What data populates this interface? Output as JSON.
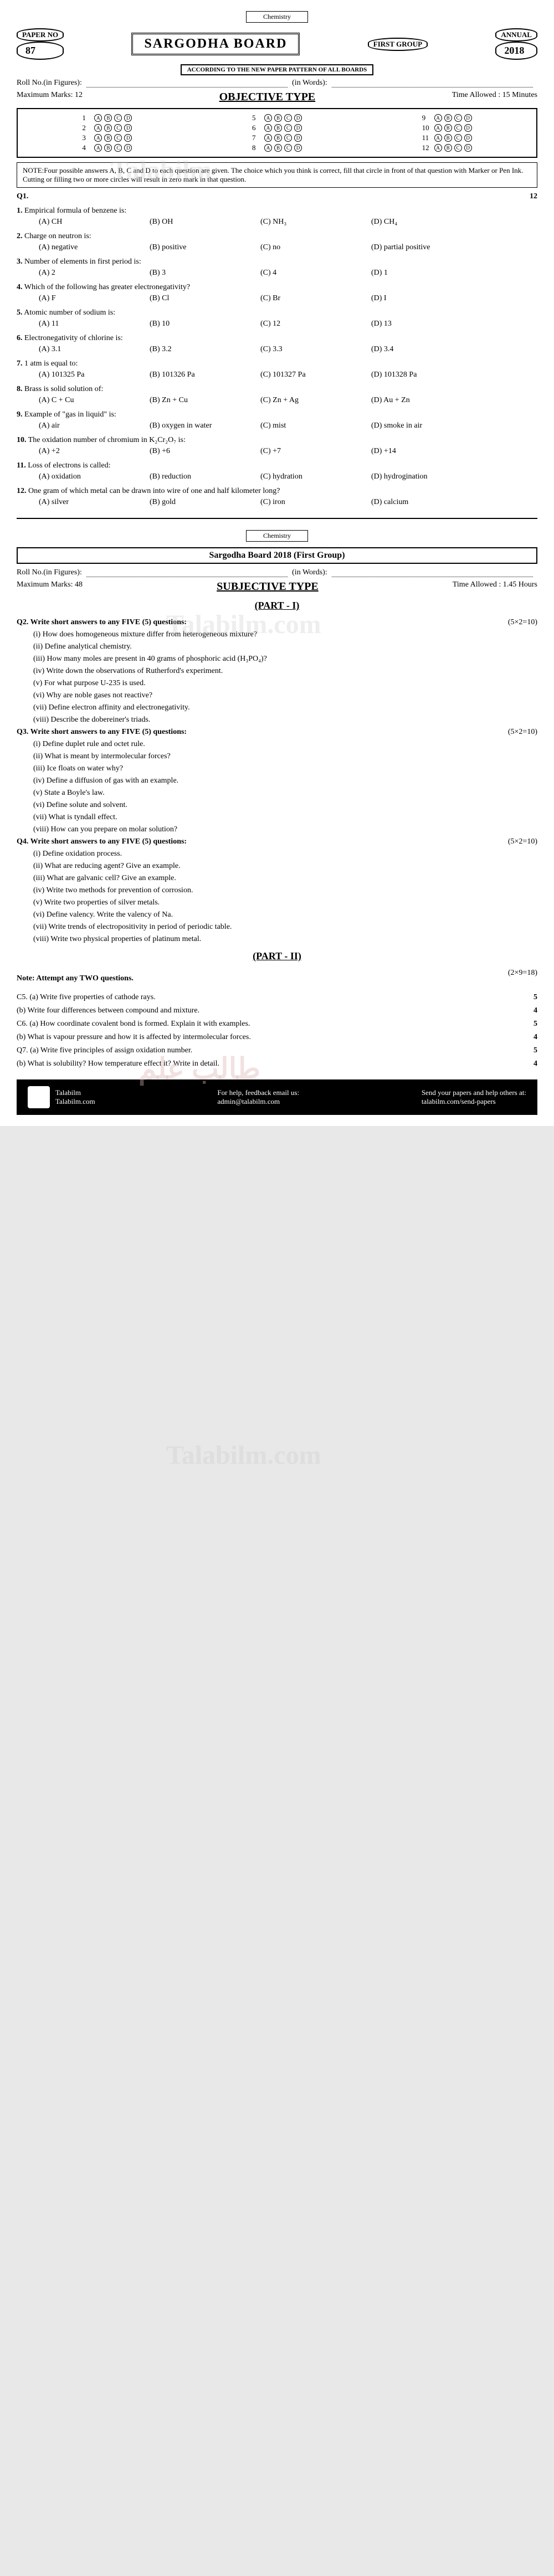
{
  "top_label": "Chemistry",
  "header": {
    "paper_no_label": "PAPER NO",
    "paper_no": "87",
    "board": "SARGODHA BOARD",
    "group": "FIRST GROUP",
    "annual": "ANNUAL",
    "year": "2018",
    "pattern": "ACCORDING TO THE NEW PAPER PATTERN OF ALL BOARDS"
  },
  "obj": {
    "roll_fig": "Roll No.(in Figures):",
    "roll_words": "(in Words):",
    "max_marks_label": "Maximum Marks:",
    "max_marks": "12",
    "title": "OBJECTIVE TYPE",
    "time_label": "Time Allowed :",
    "time": "15 Minutes",
    "note": "NOTE:Four possible answers A, B, C and D to each question are given. The choice which you think is correct, fill that circle in front of that question with Marker or Pen Ink. Cutting or filling two or more circles will result in zero mark in that question.",
    "q1_label": "Q1.",
    "q1_marks": "12"
  },
  "mcq": [
    {
      "n": "1.",
      "q": "Empirical formula of benzene is:",
      "a": "(A) CH",
      "b": "(B) OH",
      "c": "(C) NH₃",
      "d": "(D) CH₄"
    },
    {
      "n": "2.",
      "q": "Charge on neutron is:",
      "a": "(A) negative",
      "b": "(B) positive",
      "c": "(C) no",
      "d": "(D) partial positive"
    },
    {
      "n": "3.",
      "q": "Number of elements in first period is:",
      "a": "(A) 2",
      "b": "(B) 3",
      "c": "(C) 4",
      "d": "(D) 1"
    },
    {
      "n": "4.",
      "q": "Which of the following has greater electronegativity?",
      "a": "(A) F",
      "b": "(B) Cl",
      "c": "(C) Br",
      "d": "(D) I"
    },
    {
      "n": "5.",
      "q": "Atomic number of sodium is:",
      "a": "(A) 11",
      "b": "(B) 10",
      "c": "(C) 12",
      "d": "(D) 13"
    },
    {
      "n": "6.",
      "q": "Electronegativity of chlorine is:",
      "a": "(A) 3.1",
      "b": "(B) 3.2",
      "c": "(C) 3.3",
      "d": "(D) 3.4"
    },
    {
      "n": "7.",
      "q": "1 atm is equal to:",
      "a": "(A) 101325 Pa",
      "b": "(B) 101326 Pa",
      "c": "(C) 101327 Pa",
      "d": "(D) 101328 Pa"
    },
    {
      "n": "8.",
      "q": "Brass is solid solution of:",
      "a": "(A) C + Cu",
      "b": "(B) Zn + Cu",
      "c": "(C) Zn + Ag",
      "d": "(D) Au + Zn"
    },
    {
      "n": "9.",
      "q": "Example of \"gas in liquid\" is:",
      "a": "(A) air",
      "b": "(B) oxygen in water",
      "c": "(C) mist",
      "d": "(D) smoke in air"
    },
    {
      "n": "10.",
      "q": "The oxidation number of chromium in K₂Cr₂O₇ is:",
      "a": "(A) +2",
      "b": "(B) +6",
      "c": "(C) +7",
      "d": "(D) +14"
    },
    {
      "n": "11.",
      "q": "Loss of electrons is called:",
      "a": "(A) oxidation",
      "b": "(B) reduction",
      "c": "(C) hydration",
      "d": "(D) hydrogination"
    },
    {
      "n": "12.",
      "q": "One gram of which metal can be drawn into wire of one and half kilometer long?",
      "a": "(A) silver",
      "b": "(B) gold",
      "c": "(C) iron",
      "d": "(D) calcium"
    }
  ],
  "subj": {
    "header": "Sargodha Board 2018 (First Group)",
    "roll_fig": "Roll No.(in Figures):",
    "roll_words": "(in Words):",
    "max_marks_label": "Maximum Marks:",
    "max_marks": "48",
    "title": "SUBJECTIVE TYPE",
    "time_label": "Time Allowed :",
    "time": "1.45 Hours",
    "part1": "(PART - I)",
    "part2": "(PART - II)"
  },
  "sq": [
    {
      "h": "Q2. Write short answers to any FIVE (5) questions:",
      "m": "(5×2=10)",
      "items": [
        "(i) How does homogeneous mixture differ from heterogeneous mixture?",
        "(ii) Define analytical chemistry.",
        "(iii) How many moles are present in 40 grams of phosphoric acid (H₃PO₄)?",
        "(iv) Write down the observations of Rutherford's experiment.",
        "(v) For what purpose U-235 is used.",
        "(vi) Why are noble gases not reactive?",
        "(vii) Define electron affinity and electronegativity.",
        "(viii) Describe the dobereiner's triads."
      ]
    },
    {
      "h": "Q3. Write short answers to any FIVE (5) questions:",
      "m": "(5×2=10)",
      "items": [
        "(i) Define duplet rule and octet rule.",
        "(ii) What is meant by intermolecular forces?",
        "(iii) Ice floats on water why?",
        "(iv) Define a diffusion of gas with an example.",
        "(v) State a Boyle's law.",
        "(vi) Define solute and solvent.",
        "(vii) What is tyndall effect.",
        "(viii) How can you prepare on molar solution?"
      ]
    },
    {
      "h": "Q4. Write short answers to any FIVE (5) questions:",
      "m": "(5×2=10)",
      "items": [
        "(i) Define oxidation process.",
        "(ii) What are reducing agent? Give an example.",
        "(iii) What are galvanic cell? Give an example.",
        "(iv) Write two methods for prevention of corrosion.",
        "(v) Write two properties of silver metals.",
        "(vi) Define valency. Write the valency of Na.",
        "(vii) Write trends of electropositivity in period of periodic table.",
        "(viii) Write two physical properties of platinum metal."
      ]
    }
  ],
  "long": {
    "note": "Note: Attempt any TWO questions.",
    "marks": "(2×9=18)",
    "items": [
      {
        "l": "C5. (a) Write five properties of cathode rays.",
        "m": "5"
      },
      {
        "l": "(b) Write four differences between compound and mixture.",
        "m": "4"
      },
      {
        "l": "C6. (a) How coordinate covalent bond is formed. Explain it with examples.",
        "m": "5"
      },
      {
        "l": "(b) What is vapour pressure and how it is affected by intermolecular forces.",
        "m": "4"
      },
      {
        "l": "Q7. (a) Write five principles of assign oxidation number.",
        "m": "5"
      },
      {
        "l": "(b) What is solubility? How temperature effect it? Write in detail.",
        "m": "4"
      }
    ]
  },
  "footer": {
    "brand": "Talabilm",
    "site": "Talabilm.com",
    "help": "For help, feedback email us:",
    "email": "admin@talabilm.com",
    "send": "Send your papers and help others at:",
    "send_url": "talabilm.com/send-papers"
  },
  "bubbles": [
    "A",
    "B",
    "C",
    "D"
  ]
}
